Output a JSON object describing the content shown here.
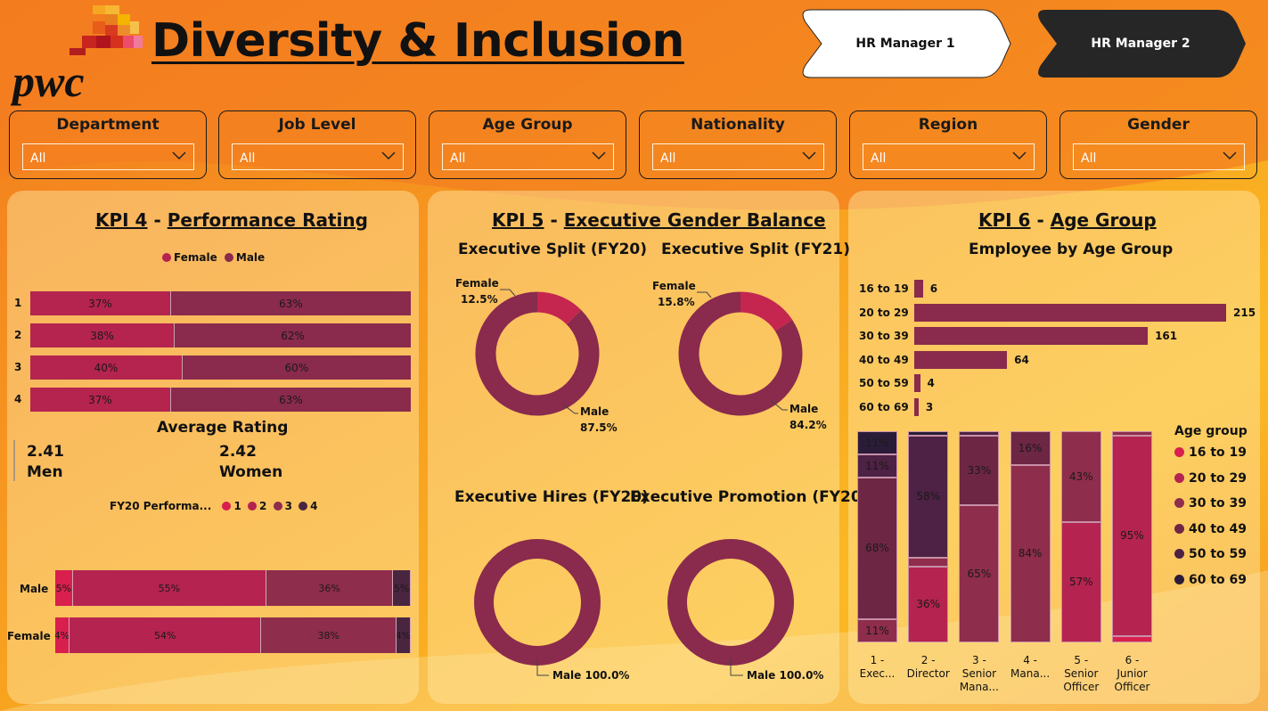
{
  "header": {
    "title": "Diversity & Inclusion",
    "logo_text": "pwc",
    "nav": [
      {
        "label": "HR Manager 1"
      },
      {
        "label": "HR Manager 2"
      }
    ]
  },
  "slicers": [
    {
      "label": "Department",
      "value": "All"
    },
    {
      "label": "Job Level",
      "value": "All"
    },
    {
      "label": "Age Group",
      "value": "All"
    },
    {
      "label": "Nationality",
      "value": "All"
    },
    {
      "label": "Region",
      "value": "All"
    },
    {
      "label": "Gender",
      "value": "All"
    }
  ],
  "colors": {
    "female": "#b5234f",
    "male": "#8a2a4c",
    "rating_1": "#d81f4e",
    "rating_2": "#b52350",
    "rating_3": "#8e2d4c",
    "rating_4": "#4a2540",
    "age_16_19": "#d81f4e",
    "age_20_29": "#b52350",
    "age_30_39": "#8e2d4c",
    "age_40_49": "#6e2645",
    "age_50_59": "#4d2244",
    "age_60_69": "#2a1c38"
  },
  "kpi4": {
    "number": "KPI 4",
    "dash": "-",
    "name": "Performance Rating",
    "avg_title": "Average Rating",
    "men_value": "2.41",
    "men_label": "Men",
    "women_value": "2.42",
    "women_label": "Women",
    "legend_title": "FY20 Performa..."
  },
  "kpi5": {
    "number": "KPI 5",
    "dash": "-",
    "name": "Executive Gender Balance",
    "split20_title": "Executive Split (FY20)",
    "split21_title": "Executive Split (FY21)",
    "hires_title": "Executive Hires (FY20)",
    "promo_title": "Executive Promotion (FY20)"
  },
  "kpi6": {
    "number": "KPI 6",
    "dash": "-",
    "name": "Age Group",
    "bar_title": "Employee by Age Group",
    "legend_title": "Age group"
  },
  "chart_data": [
    {
      "type": "bar",
      "orientation": "horizontal-stacked-100",
      "legend": [
        "Female",
        "Male"
      ],
      "legend_position": "top-center",
      "categories": [
        "1",
        "2",
        "3",
        "4"
      ],
      "series": [
        {
          "name": "Female",
          "values": [
            37,
            38,
            40,
            37
          ],
          "labels": [
            "37%",
            "38%",
            "40%",
            "37%"
          ]
        },
        {
          "name": "Male",
          "values": [
            63,
            62,
            60,
            63
          ],
          "labels": [
            "63%",
            "62%",
            "60%",
            "63%"
          ]
        }
      ]
    },
    {
      "type": "bar",
      "orientation": "horizontal-stacked-100",
      "legend_title": "FY20 Performa...",
      "legend": [
        "1",
        "2",
        "3",
        "4"
      ],
      "categories": [
        "Male",
        "Female"
      ],
      "series": [
        {
          "name": "1",
          "values": [
            5,
            4
          ],
          "labels": [
            "5%",
            "4%"
          ]
        },
        {
          "name": "2",
          "values": [
            55,
            54
          ],
          "labels": [
            "55%",
            "54%"
          ]
        },
        {
          "name": "3",
          "values": [
            36,
            38
          ],
          "labels": [
            "36%",
            "38%"
          ]
        },
        {
          "name": "4",
          "values": [
            5,
            4
          ],
          "labels": [
            "5%",
            "4%"
          ]
        }
      ]
    },
    {
      "type": "pie",
      "variant": "donut",
      "title": "Executive Split (FY20)",
      "slices": [
        {
          "name": "Female",
          "value": 12.5,
          "label": "12.5%"
        },
        {
          "name": "Male",
          "value": 87.5,
          "label": "87.5%"
        }
      ]
    },
    {
      "type": "pie",
      "variant": "donut",
      "title": "Executive Split (FY21)",
      "slices": [
        {
          "name": "Female",
          "value": 15.8,
          "label": "15.8%"
        },
        {
          "name": "Male",
          "value": 84.2,
          "label": "84.2%"
        }
      ]
    },
    {
      "type": "pie",
      "variant": "donut",
      "title": "Executive Hires (FY20)",
      "slices": [
        {
          "name": "Male",
          "value": 100.0,
          "label": "Male 100.0%"
        }
      ]
    },
    {
      "type": "pie",
      "variant": "donut",
      "title": "Executive Promotion (FY20)",
      "slices": [
        {
          "name": "Male",
          "value": 100.0,
          "label": "Male 100.0%"
        }
      ]
    },
    {
      "type": "bar",
      "orientation": "horizontal",
      "title": "Employee by Age Group",
      "categories": [
        "16 to 19",
        "20 to 29",
        "30 to 39",
        "40 to 49",
        "50 to 59",
        "60 to 69"
      ],
      "values": [
        6,
        215,
        161,
        64,
        4,
        3
      ]
    },
    {
      "type": "bar",
      "orientation": "vertical-stacked-100",
      "legend_title": "Age group",
      "legend": [
        "16 to 19",
        "20 to 29",
        "30 to 39",
        "40 to 49",
        "50 to 59",
        "60 to 69"
      ],
      "legend_position": "right",
      "categories": [
        "1 - Exec...",
        "2 - Director",
        "3 - Senior Mana...",
        "4 - Mana...",
        "5 - Senior Officer",
        "6 - Junior Officer"
      ],
      "series": [
        {
          "name": "16 to 19",
          "values": [
            0,
            0,
            0,
            0,
            0,
            3
          ],
          "labels": [
            "",
            "",
            "",
            "",
            "",
            ""
          ]
        },
        {
          "name": "20 to 29",
          "values": [
            0,
            36,
            0,
            0,
            57,
            95
          ],
          "labels": [
            "",
            "36%",
            "",
            "",
            "57%",
            "95%"
          ]
        },
        {
          "name": "30 to 39",
          "values": [
            11,
            4,
            65,
            84,
            43,
            2
          ],
          "labels": [
            "11%",
            "",
            "65%",
            "84%",
            "43%",
            ""
          ]
        },
        {
          "name": "40 to 49",
          "values": [
            68,
            0,
            33,
            16,
            0,
            0
          ],
          "labels": [
            "68%",
            "",
            "33%",
            "16%",
            "",
            ""
          ]
        },
        {
          "name": "50 to 59",
          "values": [
            11,
            58,
            2,
            0,
            0,
            0
          ],
          "labels": [
            "11%",
            "58%",
            "",
            "",
            "",
            ""
          ]
        },
        {
          "name": "60 to 69",
          "values": [
            11,
            2,
            0,
            0,
            0,
            0
          ],
          "labels": [
            "11%",
            "",
            "",
            "",
            "",
            ""
          ]
        }
      ]
    }
  ]
}
